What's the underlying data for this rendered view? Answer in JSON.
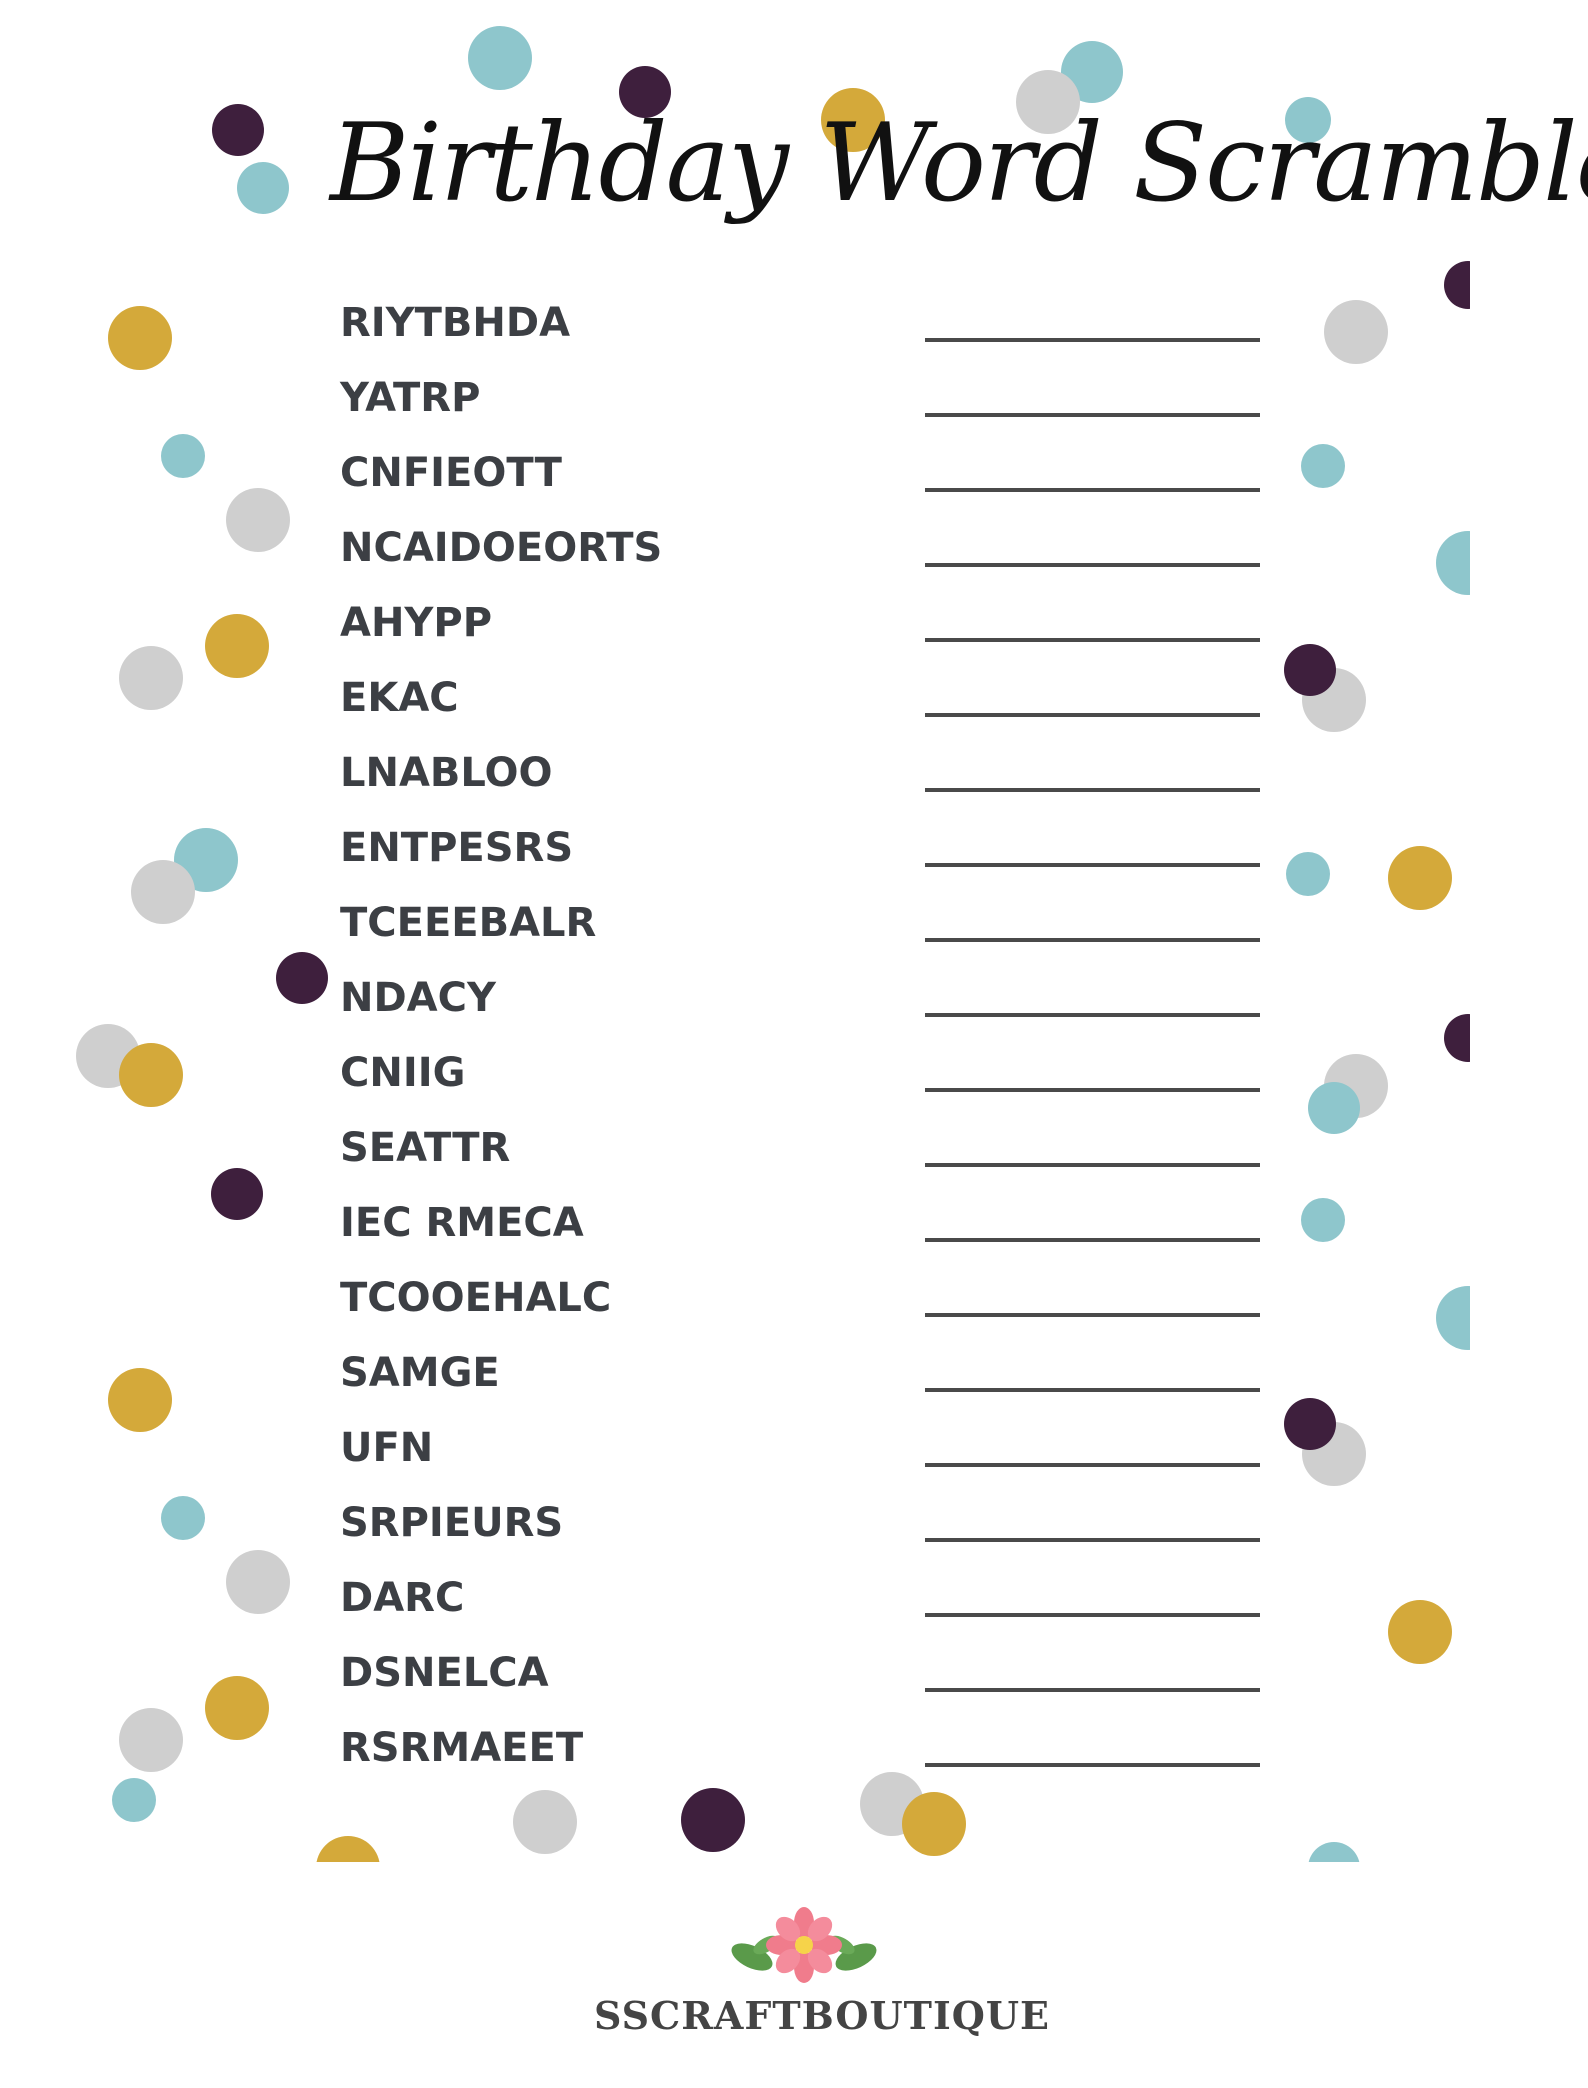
{
  "title": "Birthday Word Scramble",
  "words": [
    "RIYTBHDA",
    "YATRP",
    "CNFIEOTT",
    "NCAIDOEORTS",
    "AHYPP",
    "EKAC",
    "LNABLOO",
    "ENTPESRS",
    "TCEEEBALR",
    "NDACY",
    "CNIIG",
    "SEATTR",
    "IEC RMECA",
    "TCOOEHALC",
    "SAMGE",
    "UFN",
    "SRPIEURS",
    "DARC",
    "DSNELCA",
    "RSRMAEET"
  ],
  "brand": {
    "name": "SSCRAFTBOUTIQUE",
    "logo_icon": "flower-with-leaves-icon"
  },
  "colors": {
    "teal": "#8ec6cc",
    "gold": "#d4a93a",
    "plum": "#3e1f3d",
    "gray": "#cfcfcf",
    "word_text": "#3c3f44",
    "title_text": "#111111",
    "answer_line": "#4a4a4a"
  }
}
